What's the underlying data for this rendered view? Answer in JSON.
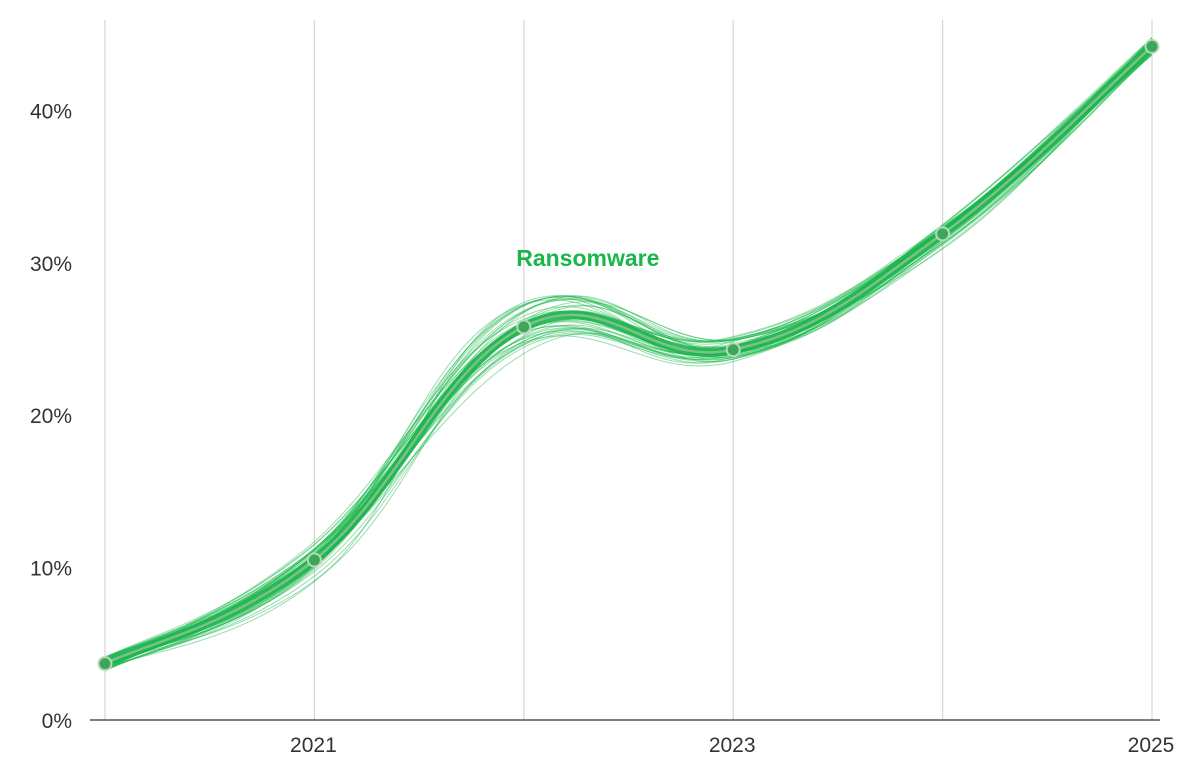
{
  "chart_data": {
    "type": "line",
    "title": "",
    "xlabel": "",
    "ylabel": "",
    "x": [
      2020,
      2021,
      2022,
      2023,
      2024,
      2025
    ],
    "x_tick_labels": [
      "2021",
      "2023",
      "2025"
    ],
    "x_tick_values": [
      2021,
      2023,
      2025
    ],
    "x_gridlines": [
      2020,
      2021,
      2022,
      2023,
      2024,
      2025
    ],
    "ylim": [
      0,
      46
    ],
    "y_tick_values": [
      0,
      10,
      20,
      30,
      40
    ],
    "y_tick_labels": [
      "0%",
      "10%",
      "20%",
      "30%",
      "40%"
    ],
    "grid": true,
    "series": [
      {
        "name": "Ransomware",
        "values": [
          3.7,
          10.5,
          25.8,
          24.3,
          31.9,
          44.2
        ],
        "color": "#19b64a",
        "label_position": "above-2022"
      }
    ]
  }
}
